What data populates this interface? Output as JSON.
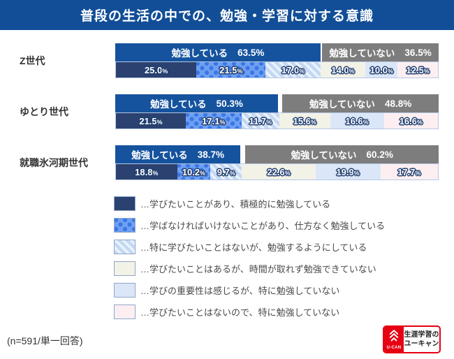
{
  "header": {
    "title": "普段の生活の中での、勉強・学習に対する意識"
  },
  "chart_data": {
    "type": "bar",
    "orientation": "horizontal",
    "stacked": true,
    "title": "普段の生活の中での、勉強・学習に対する意識",
    "unit": "%",
    "summary_labels": {
      "studying": "勉強している",
      "not_studying": "勉強していない"
    },
    "groups": [
      {
        "label": "Z世代",
        "studying": 63.5,
        "not_studying": 36.5,
        "values": [
          25.0,
          21.5,
          17.0,
          14.0,
          10.0,
          12.5
        ]
      },
      {
        "label": "ゆとり世代",
        "studying": 50.3,
        "not_studying": 48.8,
        "values": [
          21.5,
          17.1,
          11.7,
          15.6,
          16.6,
          16.6
        ]
      },
      {
        "label": "就職氷河期世代",
        "studying": 38.7,
        "not_studying": 60.2,
        "values": [
          18.8,
          10.2,
          9.7,
          22.6,
          19.9,
          17.7
        ]
      }
    ],
    "legend": [
      {
        "pattern": "solid-navy",
        "label": "…学びたいことがあり、積極的に勉強している"
      },
      {
        "pattern": "blue-dots",
        "label": "…学ばなければいけないことがあり、仕方なく勉強している"
      },
      {
        "pattern": "blue-stripes",
        "label": "…特に学びたいことはないが、勉強するようにしている"
      },
      {
        "pattern": "solid-cream",
        "label": "…学びたいことはあるが、時間が取れず勉強できていない"
      },
      {
        "pattern": "solid-lightblue",
        "label": "…学びの重要性は感じるが、特に勉強していない"
      },
      {
        "pattern": "solid-pink",
        "label": "…学びたいことはないので、特に勉強していない"
      }
    ],
    "colors": {
      "header_bg": "#114e97",
      "studying_bar": "#15539f",
      "not_studying_bar": "#7d7d7d",
      "seg1_navy": "#2b4170",
      "seg2_base": "#6e9ff2",
      "seg2_dot": "#3a77e4",
      "seg3_base": "#c3d8f4",
      "seg3_stripe": "#eaf2fb",
      "seg4_cream": "#f3f2e7",
      "seg5_lightblue": "#dbe7f8",
      "seg6_pink": "#fdeff1",
      "label_outline": "#1e3c6e"
    }
  },
  "footer": {
    "note": "(n=591/単一回答)",
    "logo": {
      "brand": "U-CAN",
      "line1": "生涯学習の",
      "line2": "ユーキャン",
      "color": "#e60012"
    }
  }
}
